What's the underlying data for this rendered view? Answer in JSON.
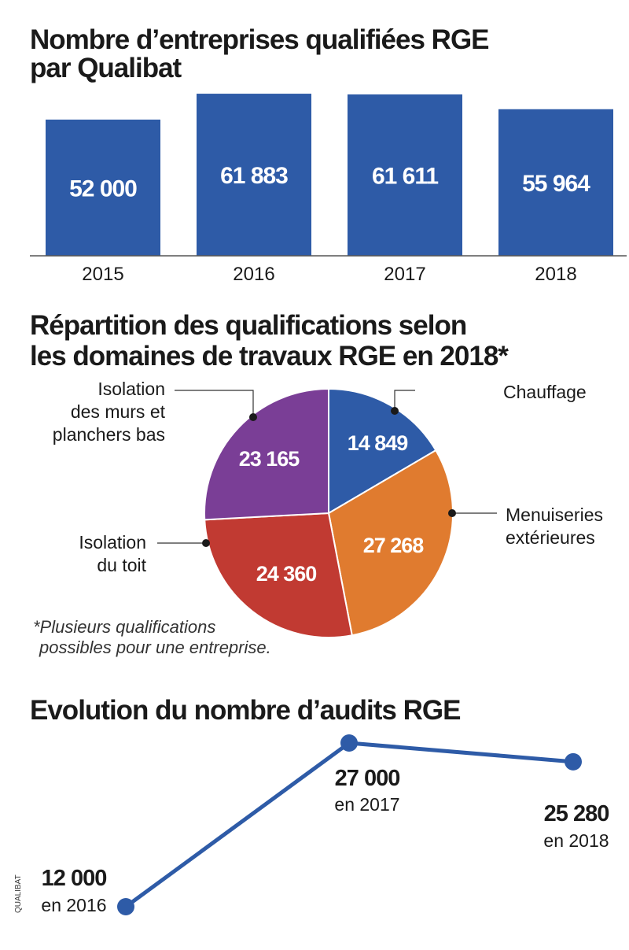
{
  "chart_data": [
    {
      "type": "bar",
      "title_line1": "Nombre d’entreprises qualifiées RGE",
      "title_line2": "par Qualibat",
      "categories": [
        "2015",
        "2016",
        "2017",
        "2018"
      ],
      "values": [
        52000,
        61883,
        61611,
        55964
      ],
      "value_labels": [
        "52 000",
        "61 883",
        "61 611",
        "55 964"
      ],
      "ylim": [
        0,
        62500
      ],
      "color": "#2e5ba7"
    },
    {
      "type": "pie",
      "title_line1": "Répartition des qualifications selon",
      "title_line2": "les domaines de travaux RGE en 2018*",
      "slices": [
        {
          "label_lines": [
            "Chauffage"
          ],
          "value": 14849,
          "value_label": "14 849",
          "color": "#2e5ba7"
        },
        {
          "label_lines": [
            "Menuiseries",
            "extérieures"
          ],
          "value": 27268,
          "value_label": "27 268",
          "color": "#e07b2f"
        },
        {
          "label_lines": [
            "Isolation",
            "du toit"
          ],
          "value": 24360,
          "value_label": "24 360",
          "color": "#c13a32"
        },
        {
          "label_lines": [
            "Isolation",
            "des murs et",
            "planchers bas"
          ],
          "value": 23165,
          "value_label": "23 165",
          "color": "#7a3e96"
        }
      ],
      "footnote_lines": [
        "*Plusieurs qualifications",
        "possibles pour une entreprise."
      ]
    },
    {
      "type": "line",
      "title": "Evolution du nombre d’audits RGE",
      "x": [
        "2016",
        "2017",
        "2018"
      ],
      "values": [
        12000,
        27000,
        25280
      ],
      "value_labels": [
        "12 000",
        "27 000",
        "25 280"
      ],
      "year_labels": [
        "en 2016",
        "en 2017",
        "en 2018"
      ],
      "color": "#2e5ba7"
    }
  ],
  "source": "QUALIBAT"
}
